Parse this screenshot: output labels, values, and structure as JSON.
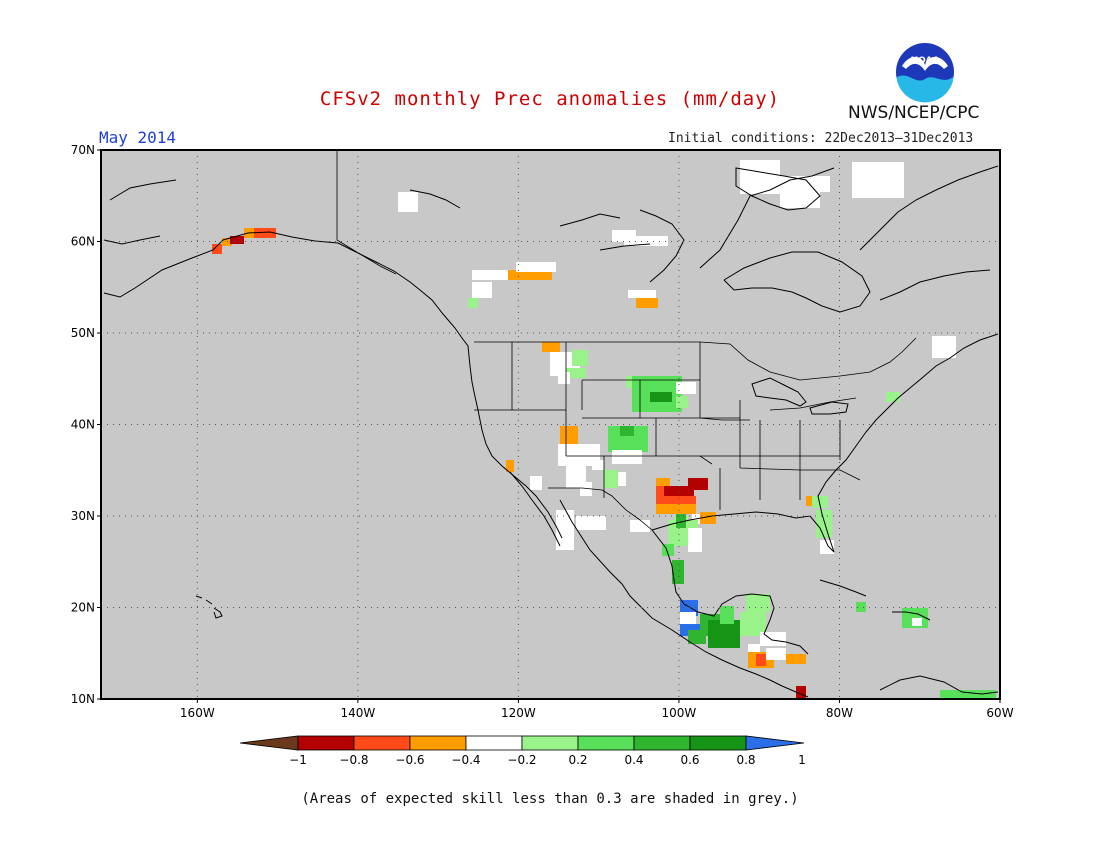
{
  "header": {
    "title": "CFSv2 monthly Prec anomalies (mm/day)",
    "title_color": "#d10000",
    "agency": "NWS/NCEP/CPC",
    "month_label": "May 2014",
    "initial_conditions": "Initial conditions: 22Dec2013–31Dec2013"
  },
  "logo": {
    "text": "NOAA",
    "icon": "noaa-logo-icon"
  },
  "map": {
    "lon_range": [
      -172,
      -60
    ],
    "lat_range": [
      10,
      70
    ],
    "land_mask_color": "#c8c8c8",
    "x_ticks": [
      "160W",
      "140W",
      "120W",
      "100W",
      "80W",
      "60W"
    ],
    "y_ticks": [
      "70N",
      "60N",
      "50N",
      "40N",
      "30N",
      "20N",
      "10N"
    ],
    "grid": "dotted"
  },
  "colorbar": {
    "labels": [
      "−1",
      "−0.8",
      "−0.6",
      "−0.4",
      "−0.2",
      "0.2",
      "0.4",
      "0.6",
      "0.8",
      "1"
    ],
    "colors": [
      "#6b3a1e",
      "#b30000",
      "#ff4a1a",
      "#ff9d00",
      "#ffffff",
      "#9af28a",
      "#58e05a",
      "#2fb52f",
      "#169416",
      "#2b6fe8"
    ]
  },
  "footer": {
    "note": "(Areas of expected skill less than 0.3 are shaded in grey.)"
  }
}
